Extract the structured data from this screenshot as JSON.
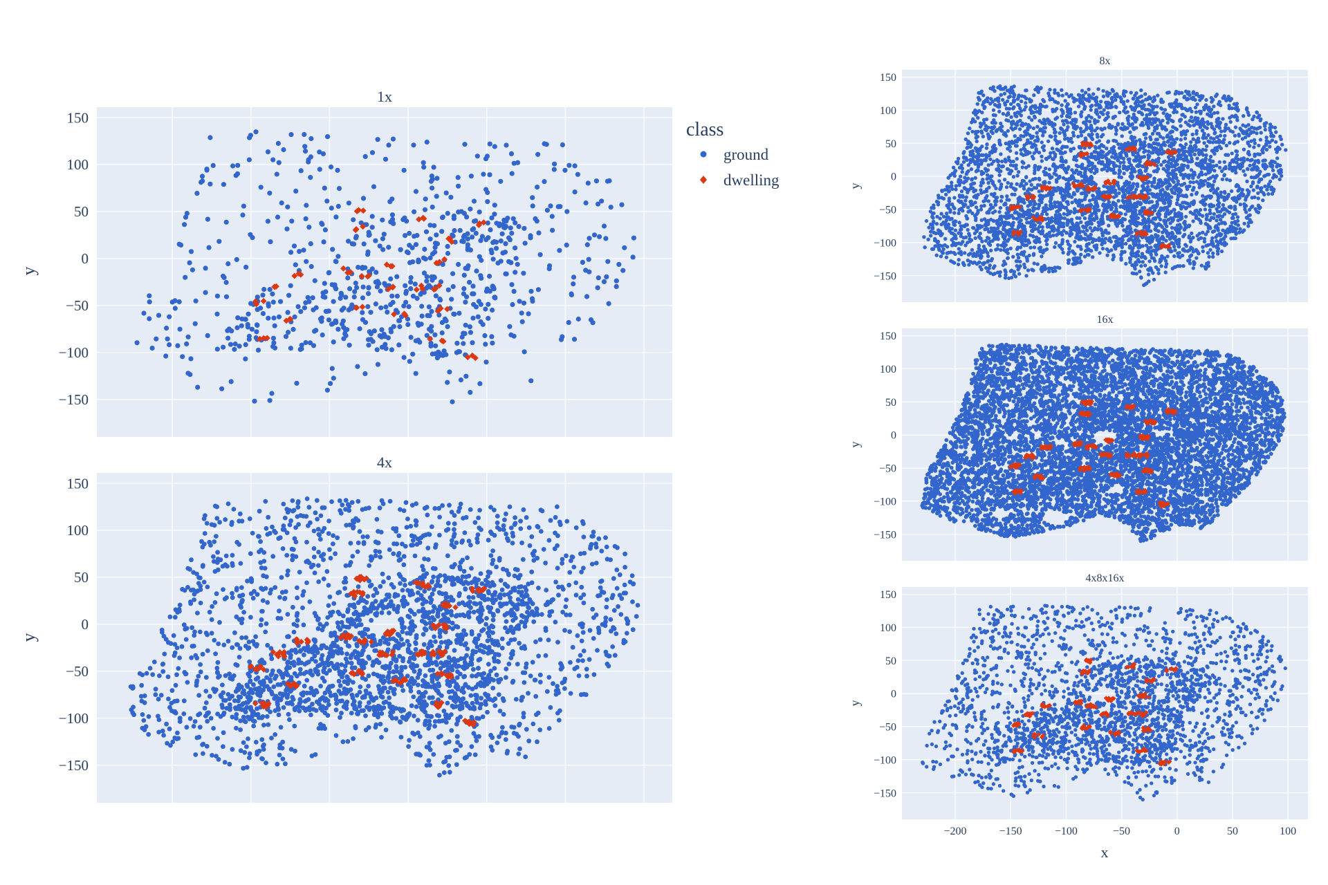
{
  "legend": {
    "title": "class",
    "items": [
      {
        "label": "ground",
        "color": "#3366cc",
        "symbol": "circle"
      },
      {
        "label": "dwelling",
        "color": "#dc3912",
        "symbol": "diamond"
      }
    ]
  },
  "chart_data": {
    "type": "scatter",
    "xlabel": "x",
    "ylabel": "y",
    "xlim": [
      -248,
      118
    ],
    "ylim": [
      -190,
      161
    ],
    "x_ticks": [
      "−200",
      "−150",
      "−100",
      "−50",
      "0",
      "50",
      "100"
    ],
    "x_tick_values": [
      -200,
      -150,
      -100,
      -50,
      0,
      50,
      100
    ],
    "y_ticks": [
      "150",
      "100",
      "50",
      "0",
      "−50",
      "−100",
      "−150"
    ],
    "y_tick_values": [
      150,
      100,
      50,
      0,
      -50,
      -100,
      -150
    ],
    "grid": true,
    "legend_position": "right of top-left panel",
    "ground_boundary": [
      [
        -230,
        -110
      ],
      [
        -226,
        -60
      ],
      [
        -212,
        -20
      ],
      [
        -197,
        30
      ],
      [
        -186,
        80
      ],
      [
        -180,
        125
      ],
      [
        -170,
        138
      ],
      [
        -100,
        133
      ],
      [
        -50,
        131
      ],
      [
        0,
        129
      ],
      [
        45,
        126
      ],
      [
        70,
        102
      ],
      [
        90,
        72
      ],
      [
        98,
        40
      ],
      [
        95,
        0
      ],
      [
        82,
        -40
      ],
      [
        62,
        -80
      ],
      [
        42,
        -112
      ],
      [
        25,
        -142
      ],
      [
        0,
        -136
      ],
      [
        -30,
        -165
      ],
      [
        -50,
        -130
      ],
      [
        -70,
        -120
      ],
      [
        -100,
        -140
      ],
      [
        -150,
        -156
      ],
      [
        -200,
        -132
      ]
    ],
    "ground_core": [
      [
        -175,
        -95
      ],
      [
        -150,
        -40
      ],
      [
        -100,
        -10
      ],
      [
        -80,
        40
      ],
      [
        -40,
        55
      ],
      [
        20,
        45
      ],
      [
        40,
        20
      ],
      [
        10,
        -20
      ],
      [
        0,
        -100
      ],
      [
        -40,
        -110
      ],
      [
        -100,
        -90
      ],
      [
        -160,
        -105
      ]
    ],
    "holes": [
      [
        -65,
        -3,
        11
      ],
      [
        -15,
        2,
        6
      ],
      [
        -150,
        -5,
        5
      ],
      [
        -105,
        -12,
        5
      ],
      [
        -55,
        -82,
        7
      ],
      [
        -110,
        -125,
        12
      ],
      [
        -160,
        -120,
        8
      ]
    ],
    "dwelling_clusters": [
      [
        -81,
        49
      ],
      [
        -83,
        32
      ],
      [
        -41,
        42
      ],
      [
        -24,
        20
      ],
      [
        -5,
        36
      ],
      [
        -60,
        -9
      ],
      [
        -77,
        -18
      ],
      [
        -30,
        -3
      ],
      [
        -41,
        -31
      ],
      [
        -64,
        -31
      ],
      [
        -89,
        -13
      ],
      [
        -118,
        -18
      ],
      [
        -133,
        -32
      ],
      [
        -146,
        -47
      ],
      [
        -125,
        -64
      ],
      [
        -143,
        -86
      ],
      [
        -83,
        -51
      ],
      [
        -56,
        -60
      ],
      [
        -27,
        -54
      ],
      [
        -32,
        -86
      ],
      [
        -11,
        -105
      ],
      [
        -31,
        -31
      ]
    ],
    "panels": [
      {
        "id": "1x",
        "title": "1x",
        "ground_points": 420,
        "core_points": 380,
        "dwelling_per_cluster": 3,
        "show_x_ticks": false
      },
      {
        "id": "4x",
        "title": "4x",
        "ground_points": 1500,
        "core_points": 1100,
        "dwelling_per_cluster": 9,
        "show_x_ticks": false
      },
      {
        "id": "8x",
        "title": "8x",
        "ground_points": 3600,
        "core_points": 800,
        "dwelling_per_cluster": 10,
        "show_x_ticks": false
      },
      {
        "id": "16x",
        "title": "16x",
        "ground_points": 6500,
        "core_points": 600,
        "dwelling_per_cluster": 12,
        "show_x_ticks": false
      },
      {
        "id": "4x8x16x",
        "title": "4x8x16x",
        "ground_points": 1500,
        "core_points": 900,
        "dwelling_per_cluster": 9,
        "show_x_ticks": true
      }
    ]
  }
}
